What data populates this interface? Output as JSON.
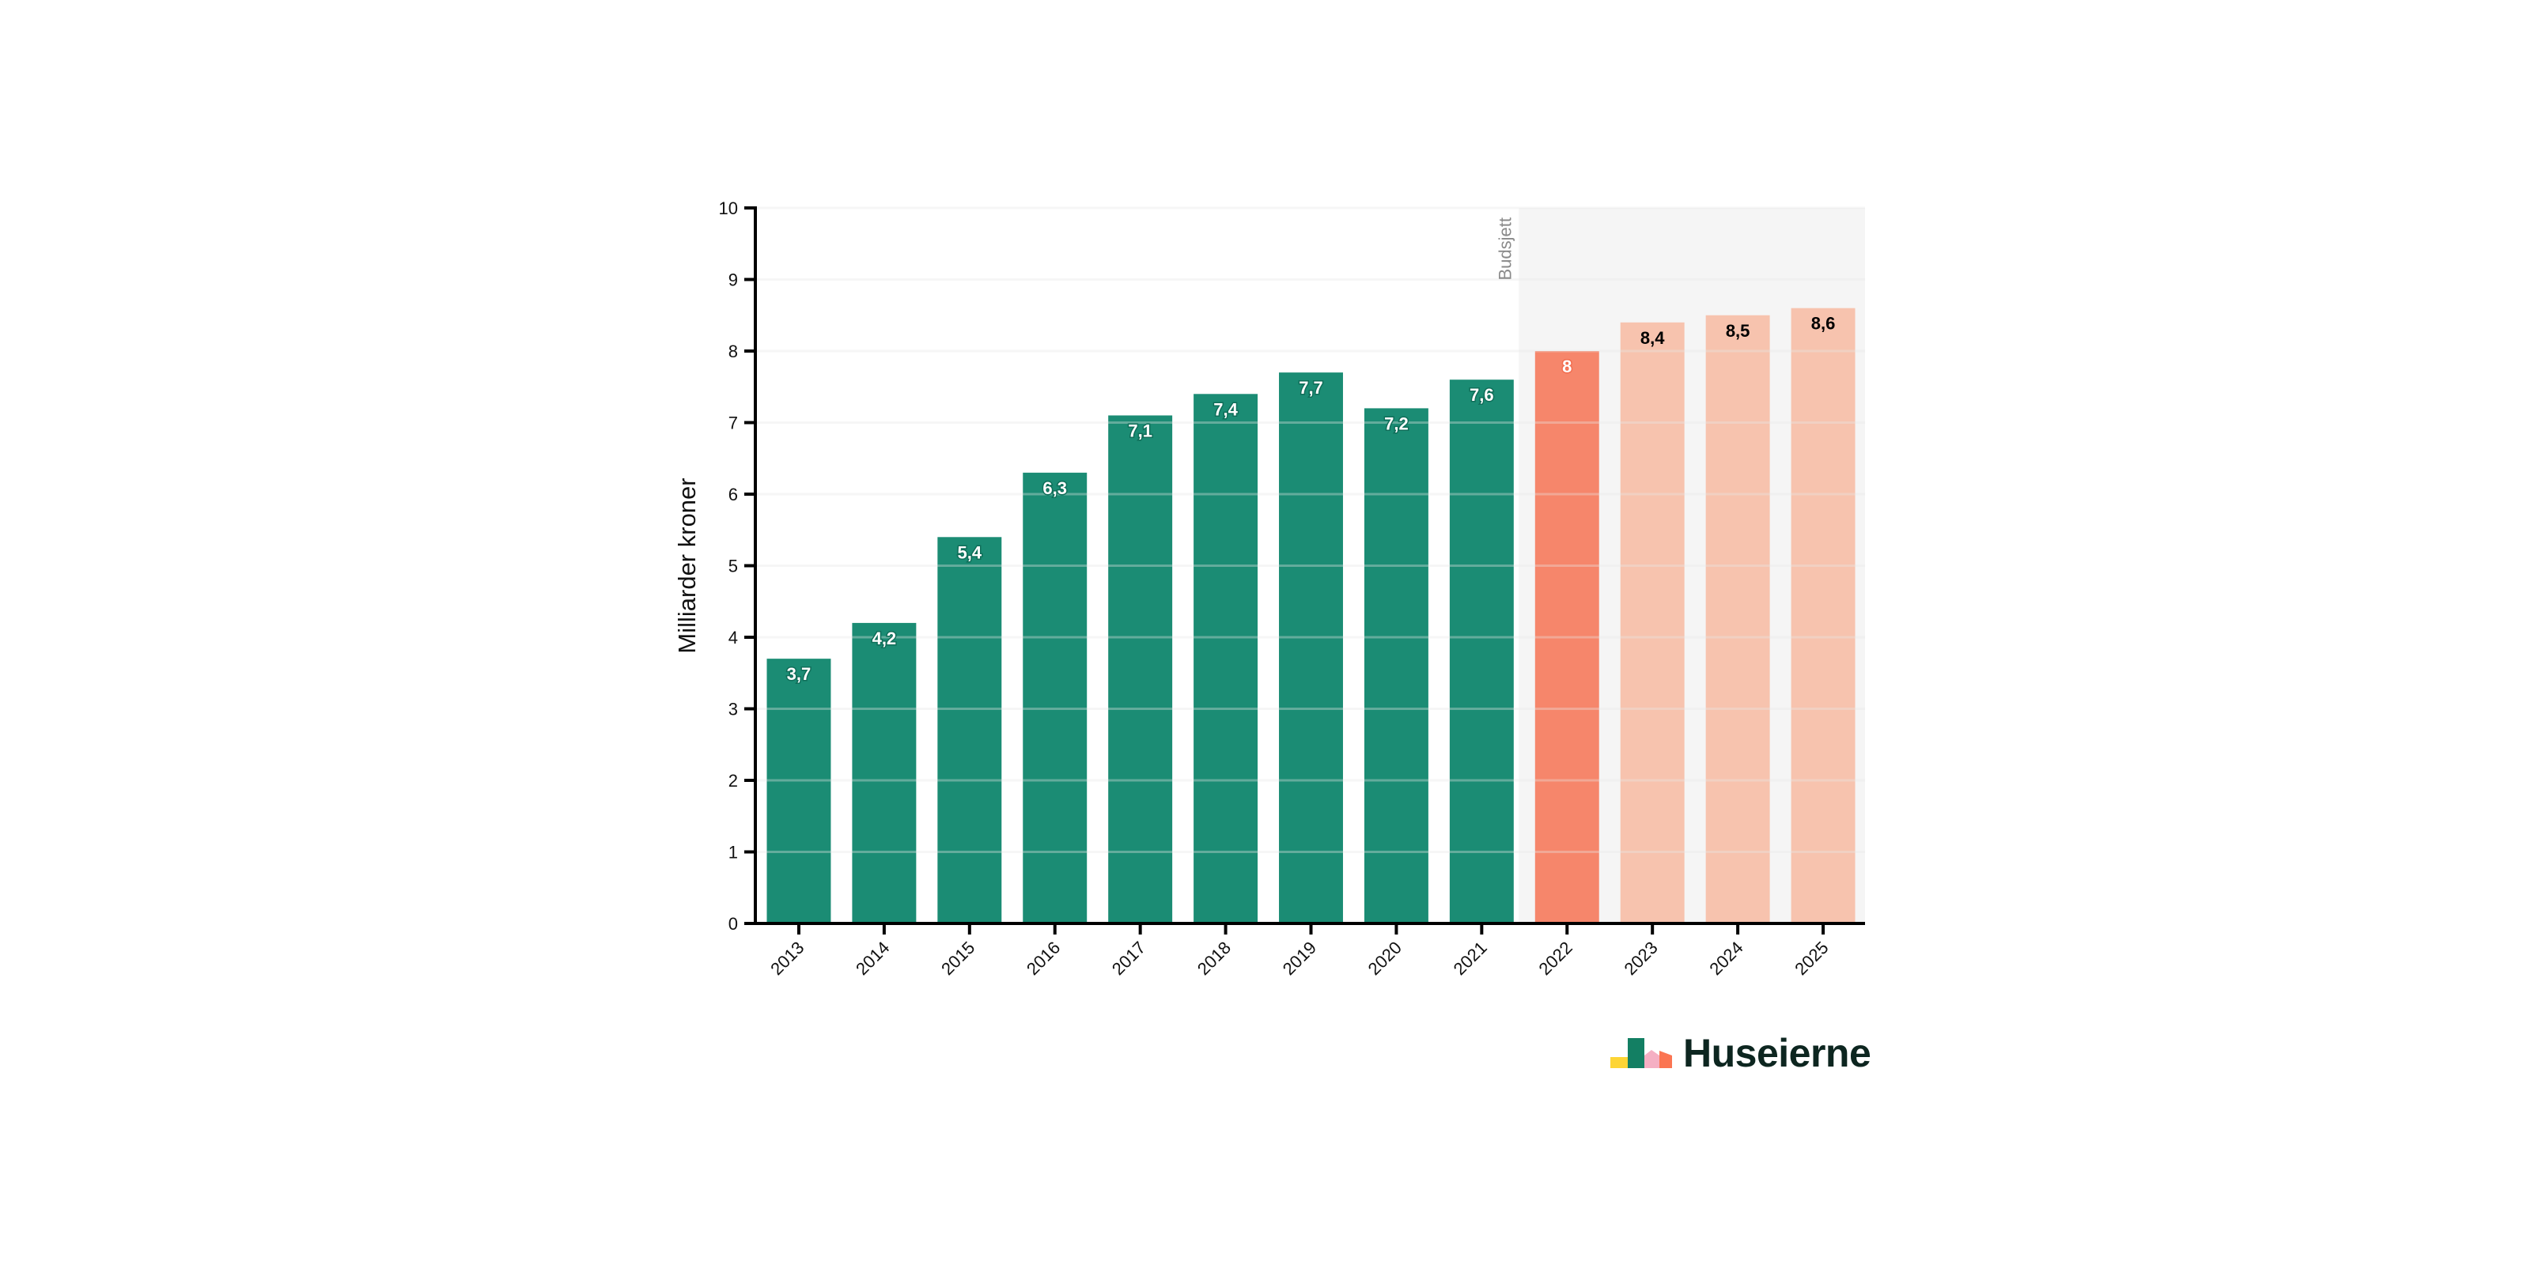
{
  "chart_data": {
    "type": "bar",
    "title": "",
    "xlabel": "",
    "ylabel": "Milliarder kroner",
    "ylim": [
      0,
      10
    ],
    "yticks": [
      0,
      1,
      2,
      3,
      4,
      5,
      6,
      7,
      8,
      9,
      10
    ],
    "grid": true,
    "categories": [
      "2013",
      "2014",
      "2015",
      "2016",
      "2017",
      "2018",
      "2019",
      "2020",
      "2021",
      "2022",
      "2023",
      "2024",
      "2025"
    ],
    "values": [
      3.7,
      4.2,
      5.4,
      6.3,
      7.1,
      7.4,
      7.7,
      7.2,
      7.6,
      8,
      8.4,
      8.5,
      8.6
    ],
    "value_labels": [
      "3,7",
      "4,2",
      "5,4",
      "6,3",
      "7,1",
      "7,4",
      "7,7",
      "7,2",
      "7,6",
      "8",
      "8,4",
      "8,5",
      "8,6"
    ],
    "bar_kinds": [
      "actual",
      "actual",
      "actual",
      "actual",
      "actual",
      "actual",
      "actual",
      "actual",
      "actual",
      "budget",
      "projection",
      "projection",
      "projection"
    ],
    "annotations": [
      {
        "text": "Budsjett",
        "region_start": "2022",
        "region_end": "2025",
        "shaded": true
      }
    ]
  },
  "colors": {
    "actual": "#1b8c74",
    "budget": "#f6866b",
    "projection": "#f7c3ae",
    "budget_region": "#f5f5f5",
    "grid": "#e8e8e8",
    "axis": "#000000",
    "label_actual": "#ffffff",
    "label_budget": "#ffffff",
    "label_projection": "#000000"
  },
  "logo": {
    "text": "Huseierne"
  }
}
